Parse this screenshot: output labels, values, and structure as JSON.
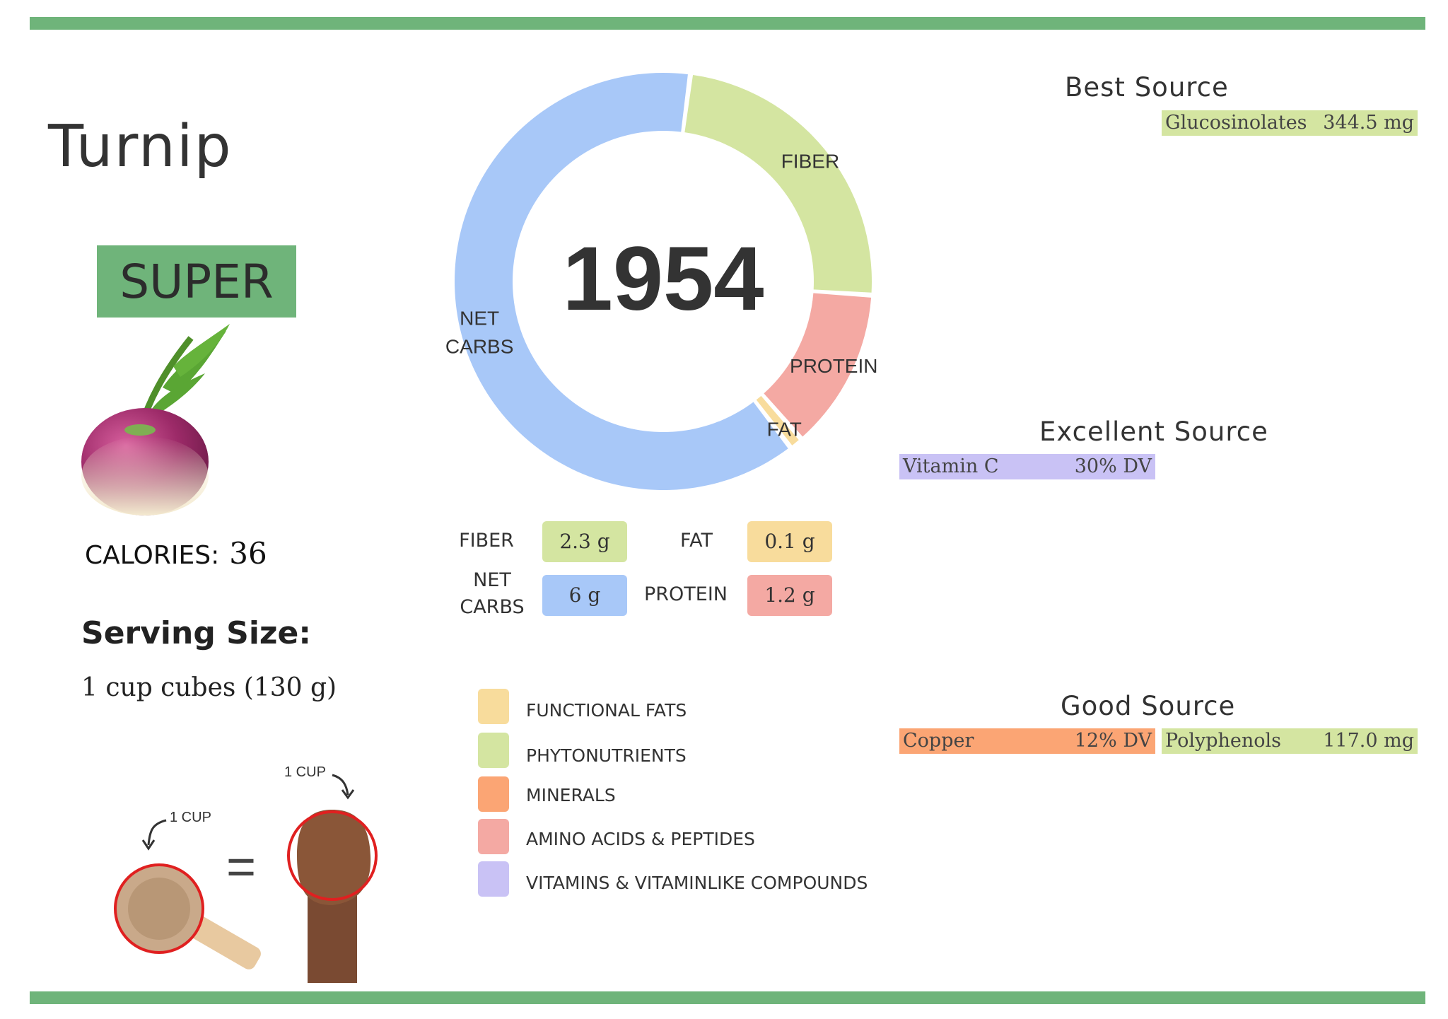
{
  "food": {
    "name": "Turnip",
    "rating": "SUPER",
    "calories_label": "CALORIES:",
    "calories_value": "36",
    "serving_heading": "Serving Size:",
    "serving_value": "1 cup cubes (130 g)",
    "cup_label_left": "1 CUP",
    "cup_label_right": "1 CUP",
    "equals": "="
  },
  "donut": {
    "center_value": "1954",
    "segments": [
      {
        "label": "NET CARBS",
        "line1": "NET",
        "line2": "CARBS",
        "grams": 6,
        "color": "#a8c8f8"
      },
      {
        "label": "FIBER",
        "line1": "FIBER",
        "line2": "",
        "grams": 2.3,
        "color": "#d4e5a1"
      },
      {
        "label": "PROTEIN",
        "line1": "PROTEIN",
        "line2": "",
        "grams": 1.2,
        "color": "#f4a9a3"
      },
      {
        "label": "FAT",
        "line1": "FAT",
        "line2": "",
        "grams": 0.1,
        "color": "#f8dc9c"
      }
    ]
  },
  "macros": {
    "fiber_label": "FIBER",
    "fiber_value": "2.3 g",
    "fat_label": "FAT",
    "fat_value": "0.1 g",
    "netcarbs_line1": "NET",
    "netcarbs_line2": "CARBS",
    "netcarbs_value": "6 g",
    "protein_label": "PROTEIN",
    "protein_value": "1.2 g"
  },
  "legend": [
    {
      "label": "FUNCTIONAL  FATS",
      "color": "#f8dc9c"
    },
    {
      "label": "PHYTONUTRIENTS",
      "color": "#d4e5a1"
    },
    {
      "label": "MINERALS",
      "color": "#fba574"
    },
    {
      "label": "AMINO ACIDS & PEPTIDES",
      "color": "#f4a9a3"
    },
    {
      "label": "VITAMINS & VITAMINLIKE COMPOUNDS",
      "color": "#c9c2f5"
    }
  ],
  "sources": {
    "best_heading": "Best Source",
    "best": [
      {
        "name": "Glucosinolates",
        "value": "344.5 mg",
        "color": "#d4e5a1"
      }
    ],
    "excellent_heading": "Excellent Source",
    "excellent": [
      {
        "name": "Vitamin C",
        "value": "30% DV",
        "color": "#c9c2f5"
      }
    ],
    "good_heading": "Good Source",
    "good": [
      {
        "name": "Copper",
        "value": "12% DV",
        "color": "#fba574"
      },
      {
        "name": "Polyphenols",
        "value": "117.0 mg",
        "color": "#d4e5a1"
      }
    ]
  }
}
